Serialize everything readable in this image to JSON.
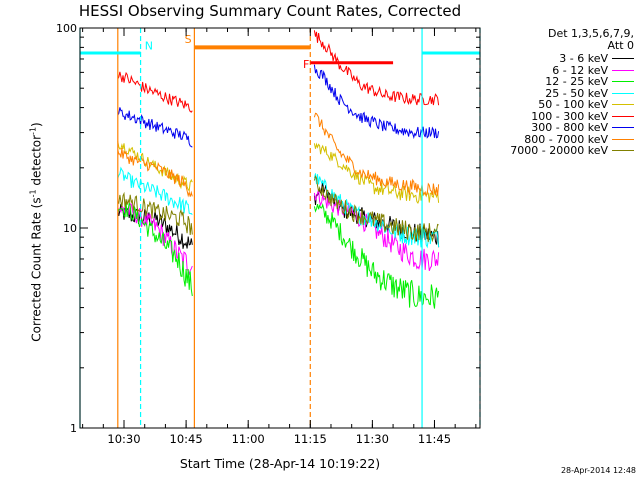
{
  "title": "HESSI Observing Summary Count Rates, Corrected",
  "legend": {
    "header_line1": "Det 1,3,5,6,7,9,",
    "header_line2": "Att 0",
    "entries": [
      {
        "label": "3 - 6 keV",
        "color": "#000000"
      },
      {
        "label": "6 - 12 keV",
        "color": "#ff00ff"
      },
      {
        "label": "12 - 25 keV",
        "color": "#00ee00"
      },
      {
        "label": "25 - 50 keV",
        "color": "#00ffff"
      },
      {
        "label": "50 - 100 keV",
        "color": "#d4c000"
      },
      {
        "label": "100 - 300 keV",
        "color": "#ff0000"
      },
      {
        "label": "300 - 800 keV",
        "color": "#0000ee"
      },
      {
        "label": "800 - 7000 keV",
        "color": "#ff8000"
      },
      {
        "label": "7000 - 20000 keV",
        "color": "#808000"
      }
    ]
  },
  "footer": "28-Apr-2014 12:48",
  "chart_data": {
    "type": "line",
    "title": "HESSI Observing Summary Count Rates, Corrected",
    "xlabel": "Start Time (28-Apr-14 10:19:22)",
    "ylabel_main": "Corrected Count Rate (s",
    "ylabel_sup1": "-1",
    "ylabel_mid": " detector",
    "ylabel_sup2": "-1",
    "ylabel_end": ")",
    "yscale": "log",
    "ylim": [
      1,
      100
    ],
    "xlim": [
      "10:19:22",
      "11:56:00"
    ],
    "x_ticks": [
      {
        "t": "10:30",
        "label": "10:30"
      },
      {
        "t": "10:45",
        "label": "10:45"
      },
      {
        "t": "11:00",
        "label": "11:00"
      },
      {
        "t": "11:15",
        "label": "11:15"
      },
      {
        "t": "11:30",
        "label": "11:30"
      },
      {
        "t": "11:45",
        "label": "11:45"
      }
    ],
    "y_ticks": [
      {
        "v": 1,
        "label": "1"
      },
      {
        "v": 10,
        "label": "10"
      },
      {
        "v": 100,
        "label": "100"
      }
    ],
    "intervals": [
      {
        "start": "10:28:30",
        "end": "10:46:30"
      },
      {
        "start": "11:16:00",
        "end": "11:46:00"
      }
    ],
    "series": [
      {
        "name": "3 - 6 keV",
        "color": "#000000",
        "segments": [
          {
            "x": [
              "10:28:30",
              "10:32:00",
              "10:38:00",
              "10:44:00",
              "10:46:30"
            ],
            "y": [
              12,
              11.5,
              11,
              9,
              8
            ]
          },
          {
            "x": [
              "11:16:00",
              "11:18:00",
              "11:22:00",
              "11:27:00",
              "11:33:00",
              "11:40:00",
              "11:46:00"
            ],
            "y": [
              14,
              16,
              12.5,
              11.5,
              10.5,
              9.5,
              9
            ]
          }
        ]
      },
      {
        "name": "6 - 12 keV",
        "color": "#ff00ff",
        "segments": [
          {
            "x": [
              "10:28:30",
              "10:32:00",
              "10:38:00",
              "10:44:00",
              "10:46:30"
            ],
            "y": [
              12.5,
              12,
              10,
              7,
              6.5
            ]
          },
          {
            "x": [
              "11:16:00",
              "11:20:00",
              "11:25:00",
              "11:30:00",
              "11:36:00",
              "11:41:00",
              "11:46:00"
            ],
            "y": [
              15,
              13,
              12,
              10,
              8,
              7,
              7
            ]
          }
        ]
      },
      {
        "name": "12 - 25 keV",
        "color": "#00ee00",
        "segments": [
          {
            "x": [
              "10:28:30",
              "10:32:00",
              "10:37:00",
              "10:43:00",
              "10:46:30"
            ],
            "y": [
              13,
              12,
              9.5,
              7,
              5
            ]
          },
          {
            "x": [
              "11:16:00",
              "11:20:00",
              "11:25:00",
              "11:30:00",
              "11:36:00",
              "11:41:00",
              "11:46:00"
            ],
            "y": [
              13,
              11,
              8,
              6,
              5,
              4.5,
              4.5
            ]
          }
        ]
      },
      {
        "name": "25 - 50 keV",
        "color": "#00ffff",
        "segments": [
          {
            "x": [
              "10:28:30",
              "10:32:00",
              "10:38:00",
              "10:44:00",
              "10:46:30"
            ],
            "y": [
              19,
              17,
              15,
              13,
              12
            ]
          },
          {
            "x": [
              "11:16:00",
              "11:20:00",
              "11:25:00",
              "11:30:00",
              "11:36:00",
              "11:41:00",
              "11:46:00"
            ],
            "y": [
              18,
              15,
              12,
              11,
              9.5,
              9,
              9
            ]
          }
        ]
      },
      {
        "name": "50 - 100 keV",
        "color": "#d4c000",
        "segments": [
          {
            "x": [
              "10:28:30",
              "10:32:00",
              "10:38:00",
              "10:44:00",
              "10:46:30"
            ],
            "y": [
              27,
              24,
              20,
              17,
              16
            ]
          },
          {
            "x": [
              "11:16:00",
              "11:19:00",
              "11:25:00",
              "11:30:00",
              "11:36:00",
              "11:41:00",
              "11:46:00"
            ],
            "y": [
              26,
              24,
              19,
              16,
              15,
              14.5,
              14.5
            ]
          }
        ]
      },
      {
        "name": "100 - 300 keV",
        "color": "#ff0000",
        "segments": [
          {
            "x": [
              "10:28:30",
              "10:30:00",
              "10:35:00",
              "10:40:00",
              "10:46:30"
            ],
            "y": [
              58,
              57,
              50,
              45,
              40
            ]
          },
          {
            "x": [
              "11:16:00",
              "11:18:00",
              "11:22:00",
              "11:27:00",
              "11:33:00",
              "11:40:00",
              "11:46:00"
            ],
            "y": [
              93,
              85,
              66,
              52,
              46,
              44,
              44
            ]
          }
        ]
      },
      {
        "name": "300 - 800 keV",
        "color": "#0000ee",
        "segments": [
          {
            "x": [
              "10:28:30",
              "10:32:00",
              "10:38:00",
              "10:44:00",
              "10:46:30"
            ],
            "y": [
              38,
              36,
              32,
              29,
              27
            ]
          },
          {
            "x": [
              "11:16:00",
              "11:18:00",
              "11:22:00",
              "11:27:00",
              "11:33:00",
              "11:40:00",
              "11:46:00"
            ],
            "y": [
              63,
              58,
              44,
              36,
              32,
              30,
              30
            ]
          }
        ]
      },
      {
        "name": "800 - 7000 keV",
        "color": "#ff8000",
        "segments": [
          {
            "x": [
              "10:28:30",
              "10:32:00",
              "10:38:00",
              "10:44:00",
              "10:46:30"
            ],
            "y": [
              24,
              22,
              20,
              17,
              15
            ]
          },
          {
            "x": [
              "11:16:00",
              "11:18:00",
              "11:22:00",
              "11:27:00",
              "11:33:00",
              "11:40:00",
              "11:46:00"
            ],
            "y": [
              37,
              32,
              24,
              19,
              17,
              16,
              15.5
            ]
          }
        ]
      },
      {
        "name": "7000 - 20000 keV",
        "color": "#808000",
        "segments": [
          {
            "x": [
              "10:28:30",
              "10:32:00",
              "10:38:00",
              "10:44:00",
              "10:46:30"
            ],
            "y": [
              14,
              13.5,
              12,
              11,
              10
            ]
          },
          {
            "x": [
              "11:16:00",
              "11:20:00",
              "11:25:00",
              "11:30:00",
              "11:36:00",
              "11:41:00",
              "11:46:00"
            ],
            "y": [
              17,
              14,
              12,
              11,
              10,
              9.5,
              9.5
            ]
          }
        ]
      }
    ],
    "markers": {
      "night_bars": [
        {
          "start": "10:19:22",
          "end": "10:34:00",
          "y": 75,
          "color": "#00ffff"
        },
        {
          "start": "11:42:00",
          "end": "11:56:00",
          "y": 75,
          "color": "#00ffff"
        }
      ],
      "saa_bar": {
        "start": "10:47:00",
        "end": "11:15:00",
        "y": 80,
        "color": "#ff8000"
      },
      "flare_bar": {
        "start": "11:15:00",
        "end": "11:35:00",
        "y": 67,
        "color": "#ff0000"
      },
      "vlines": [
        {
          "t": "10:19:22",
          "color": "#00ffff",
          "style": "solid"
        },
        {
          "t": "10:34:00",
          "color": "#00ffff",
          "style": "dashed"
        },
        {
          "t": "11:42:00",
          "color": "#00ffff",
          "style": "solid"
        },
        {
          "t": "11:56:00",
          "color": "#00ffff",
          "style": "dashed"
        },
        {
          "t": "10:28:30",
          "color": "#ff8000",
          "style": "solid"
        },
        {
          "t": "10:47:00",
          "color": "#ff8000",
          "style": "solid"
        },
        {
          "t": "11:15:00",
          "color": "#ff8000",
          "style": "dashed"
        }
      ],
      "labels": [
        {
          "text": "N",
          "t": "10:36:00",
          "y": 78,
          "color": "#00ffff"
        },
        {
          "text": "S",
          "t": "10:45:30",
          "y": 84,
          "color": "#ff8000"
        },
        {
          "text": "F",
          "t": "11:14:00",
          "y": 63,
          "color": "#ff0000"
        }
      ]
    }
  }
}
